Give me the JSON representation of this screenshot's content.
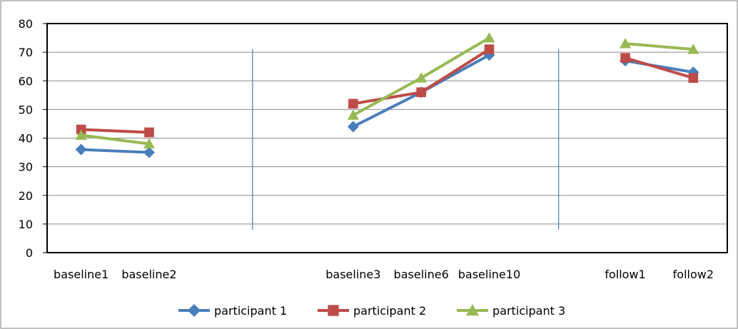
{
  "chart_data": {
    "type": "line",
    "title": "",
    "xlabel": "",
    "ylabel": "",
    "ylim": [
      0,
      80
    ],
    "yticks": [
      0,
      10,
      20,
      30,
      40,
      50,
      60,
      70,
      80
    ],
    "grid": true,
    "legend_position": "bottom",
    "categories": [
      "baseline1",
      "baseline2",
      "",
      "",
      "baseline3",
      "baseline6",
      "baseline10",
      "",
      "follow1",
      "follow2"
    ],
    "phase_lines_after_category": [
      "baseline2",
      "baseline10"
    ],
    "series": [
      {
        "name": "participant 1",
        "color": "#4a7ebb",
        "marker": "diamond",
        "values": [
          36,
          35,
          null,
          null,
          44,
          56,
          69,
          null,
          67,
          63
        ]
      },
      {
        "name": "participant 2",
        "color": "#be4b48",
        "marker": "square",
        "values": [
          43,
          42,
          null,
          null,
          52,
          56,
          71,
          null,
          68,
          61
        ]
      },
      {
        "name": "participant 3",
        "color": "#98b954",
        "marker": "triangle",
        "values": [
          41,
          38,
          null,
          null,
          48,
          61,
          75,
          null,
          73,
          71
        ]
      }
    ]
  }
}
